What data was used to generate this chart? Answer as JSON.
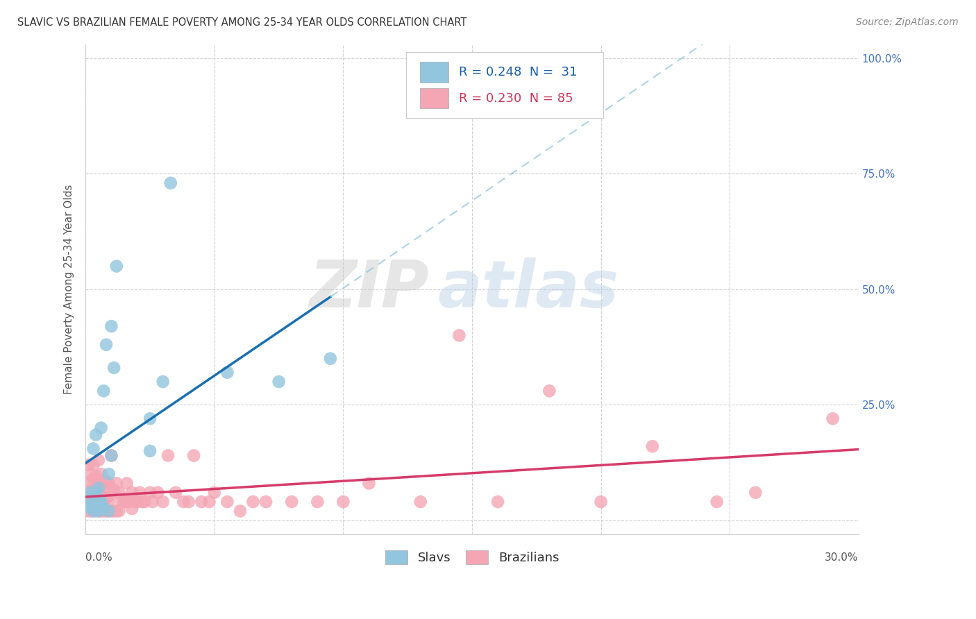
{
  "title": "SLAVIC VS BRAZILIAN FEMALE POVERTY AMONG 25-34 YEAR OLDS CORRELATION CHART",
  "source": "Source: ZipAtlas.com",
  "ylabel": "Female Poverty Among 25-34 Year Olds",
  "xlim": [
    0.0,
    0.3
  ],
  "ylim": [
    -0.03,
    1.03
  ],
  "ytick_vals": [
    0.0,
    0.25,
    0.5,
    0.75,
    1.0
  ],
  "right_tick_labels": [
    "",
    "25.0%",
    "50.0%",
    "75.0%",
    "100.0%"
  ],
  "slavic_color": "#92c5de",
  "slavic_line_color": "#1a6faf",
  "slavic_ext_color": "#92c5de",
  "brazilian_color": "#f4a6b4",
  "brazilian_line_color": "#d63b6a",
  "background_color": "#ffffff",
  "grid_color": "#cccccc",
  "right_tick_color": "#4472c4",
  "legend_slavs": "Slavs",
  "legend_brazilians": "Brazilians",
  "legend_blue_text": "R = 0.248  N =  31",
  "legend_pink_text": "R = 0.230  N = 85",
  "slavic_x": [
    0.001,
    0.001,
    0.002,
    0.002,
    0.003,
    0.003,
    0.003,
    0.004,
    0.004,
    0.004,
    0.005,
    0.005,
    0.005,
    0.006,
    0.006,
    0.007,
    0.007,
    0.008,
    0.009,
    0.009,
    0.01,
    0.01,
    0.011,
    0.012,
    0.025,
    0.025,
    0.03,
    0.033,
    0.055,
    0.075,
    0.095
  ],
  "slavic_y": [
    0.05,
    0.03,
    0.03,
    0.06,
    0.02,
    0.03,
    0.155,
    0.025,
    0.06,
    0.185,
    0.02,
    0.042,
    0.07,
    0.04,
    0.2,
    0.025,
    0.28,
    0.38,
    0.02,
    0.1,
    0.14,
    0.42,
    0.33,
    0.55,
    0.22,
    0.15,
    0.3,
    0.73,
    0.32,
    0.3,
    0.35
  ],
  "brazilian_x": [
    0.001,
    0.001,
    0.001,
    0.001,
    0.002,
    0.002,
    0.002,
    0.002,
    0.003,
    0.003,
    0.003,
    0.003,
    0.003,
    0.004,
    0.004,
    0.004,
    0.004,
    0.005,
    0.005,
    0.005,
    0.005,
    0.005,
    0.006,
    0.006,
    0.006,
    0.006,
    0.007,
    0.007,
    0.007,
    0.008,
    0.008,
    0.008,
    0.009,
    0.009,
    0.009,
    0.01,
    0.01,
    0.01,
    0.011,
    0.011,
    0.012,
    0.012,
    0.013,
    0.013,
    0.014,
    0.015,
    0.016,
    0.016,
    0.017,
    0.018,
    0.018,
    0.019,
    0.02,
    0.021,
    0.022,
    0.023,
    0.025,
    0.026,
    0.028,
    0.03,
    0.032,
    0.035,
    0.038,
    0.04,
    0.042,
    0.045,
    0.048,
    0.05,
    0.055,
    0.06,
    0.065,
    0.07,
    0.08,
    0.09,
    0.1,
    0.11,
    0.13,
    0.145,
    0.16,
    0.18,
    0.2,
    0.22,
    0.245,
    0.26,
    0.29
  ],
  "brazilian_y": [
    0.02,
    0.05,
    0.08,
    0.12,
    0.02,
    0.04,
    0.065,
    0.1,
    0.02,
    0.04,
    0.06,
    0.09,
    0.12,
    0.02,
    0.045,
    0.07,
    0.095,
    0.02,
    0.04,
    0.06,
    0.09,
    0.13,
    0.02,
    0.045,
    0.075,
    0.1,
    0.02,
    0.04,
    0.07,
    0.02,
    0.05,
    0.085,
    0.02,
    0.04,
    0.08,
    0.02,
    0.055,
    0.14,
    0.02,
    0.065,
    0.02,
    0.08,
    0.02,
    0.06,
    0.04,
    0.04,
    0.04,
    0.08,
    0.04,
    0.025,
    0.06,
    0.04,
    0.04,
    0.06,
    0.04,
    0.04,
    0.06,
    0.04,
    0.06,
    0.04,
    0.14,
    0.06,
    0.04,
    0.04,
    0.14,
    0.04,
    0.04,
    0.06,
    0.04,
    0.02,
    0.04,
    0.04,
    0.04,
    0.04,
    0.04,
    0.08,
    0.04,
    0.4,
    0.04,
    0.28,
    0.04,
    0.16,
    0.04,
    0.06,
    0.22
  ]
}
